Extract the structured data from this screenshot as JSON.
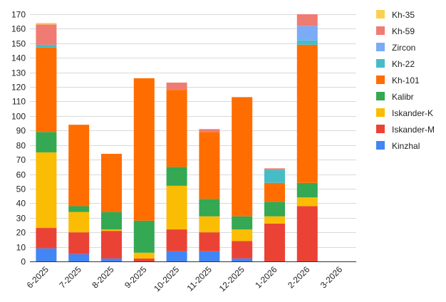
{
  "chart_data": {
    "type": "bar",
    "stacked": true,
    "title": "",
    "xlabel": "",
    "ylabel": "",
    "ylim": [
      0,
      170
    ],
    "yticks": [
      0,
      10,
      20,
      30,
      40,
      50,
      60,
      70,
      80,
      90,
      100,
      110,
      120,
      130,
      140,
      150,
      160,
      170
    ],
    "grid": true,
    "legend_position": "right",
    "categories": [
      "6-2025",
      "7-2025",
      "8-2025",
      "9-2025",
      "10-2025",
      "11-2025",
      "12-2025",
      "1-2026",
      "2-2026",
      "3-2026"
    ],
    "series": [
      {
        "name": "Kinzhal",
        "color": "#4285f4",
        "values": [
          9,
          5,
          2,
          0,
          7,
          7,
          2,
          0,
          0,
          0
        ]
      },
      {
        "name": "Iskander-M",
        "color": "#ea4335",
        "values": [
          14,
          15,
          19,
          2,
          15,
          13,
          12,
          26,
          38,
          0
        ]
      },
      {
        "name": "Iskander-K",
        "color": "#fbbc04",
        "values": [
          52,
          14,
          1,
          4,
          30,
          11,
          8,
          5,
          6,
          0
        ]
      },
      {
        "name": "Kalibr",
        "color": "#34a853",
        "values": [
          14,
          4,
          12,
          22,
          13,
          12,
          9,
          10,
          10,
          0
        ]
      },
      {
        "name": "Kh-101",
        "color": "#ff6d01",
        "values": [
          58,
          56,
          40,
          98,
          53,
          46,
          82,
          13,
          95,
          0
        ]
      },
      {
        "name": "Kh-22",
        "color": "#46bdc6",
        "values": [
          2,
          0,
          0,
          0,
          0,
          0,
          0,
          9,
          3,
          0
        ]
      },
      {
        "name": "Zircon",
        "color": "#7baaf7",
        "values": [
          0,
          0,
          0,
          0,
          0,
          0,
          0,
          0,
          10,
          0
        ]
      },
      {
        "name": "Kh-59",
        "color": "#f07b72",
        "values": [
          14,
          0,
          0,
          0,
          5,
          2,
          0,
          1,
          8,
          0
        ]
      },
      {
        "name": "Kh-35",
        "color": "#fcd04f",
        "values": [
          1,
          0,
          0,
          0,
          0,
          0,
          0,
          0,
          0,
          0
        ]
      }
    ]
  }
}
